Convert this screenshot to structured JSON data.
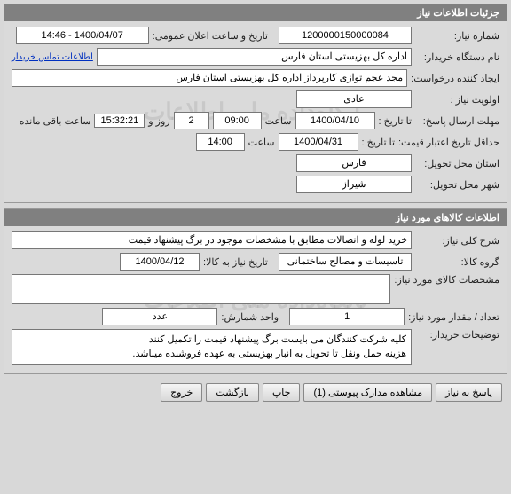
{
  "panel1": {
    "title": "جزئیات اطلاعات نیاز",
    "watermark": "پایگاه‌داده ملی اطلاعات",
    "need_no_label": "شماره نیاز:",
    "need_no": "1200000150000084",
    "public_dt_label": "تاریخ و ساعت اعلان عمومی:",
    "public_dt": "1400/04/07 - 14:46",
    "buyer_org_label": "نام دستگاه خریدار:",
    "buyer_org": "اداره کل بهزیستی استان فارس",
    "buyer_contact_link": "اطلاعات تماس خریدار",
    "creator_label": "ایجاد کننده درخواست:",
    "creator": "مجد عجم توازی کارپرداز اداره کل بهزیستی استان فارس",
    "priority_label": "اولویت نیاز :",
    "priority": "عادی",
    "deadline_label": "مهلت ارسال پاسخ:",
    "to_date_label": "تا تاریخ :",
    "deadline_date": "1400/04/10",
    "time_label": "ساعت",
    "deadline_time": "09:00",
    "days_field": "2",
    "days_and": "روز و",
    "countdown": "15:32:21",
    "remaining": "ساعت باقی مانده",
    "min_valid_label": "حداقل تاریخ اعتبار قیمت:",
    "min_valid_date": "1400/04/31",
    "min_valid_time": "14:00",
    "province_label": "استان محل تحویل:",
    "province": "فارس",
    "city_label": "شهر محل تحویل:",
    "city": "شیراز"
  },
  "panel2": {
    "title": "اطلاعات کالاهای مورد نیاز",
    "watermark": "پایگاه‌داده ملی اطلاعات",
    "summary_label": "شرح کلی نیاز:",
    "summary": "خرید لوله و اتصالات مطابق با مشخصات موجود در برگ پیشنهاد قیمت",
    "group_label": "گروه کالا:",
    "group": "تاسیسات و مصالح ساختمانی",
    "need_dt_label": "تاریخ نیاز به کالا:",
    "need_dt": "1400/04/12",
    "goods_spec_label": "مشخصات کالای مورد نیاز:",
    "goods_spec": "",
    "qty_label": "تعداد / مقدار مورد نیاز:",
    "qty": "1",
    "unit_label": "واحد شمارش:",
    "unit": "عدد",
    "buyer_notes_label": "توضیحات خریدار:",
    "buyer_notes": "کلیه شرکت کنندگان می بایست برگ پیشنهاد قیمت را تکمیل کنند\nهزینه حمل ونقل تا تحویل به انبار بهزیستی به عهده فروشنده میباشد."
  },
  "buttons": {
    "respond": "پاسخ به نیاز",
    "attachments": "مشاهده مدارک پیوستی  (1)",
    "print": "چاپ",
    "back": "بازگشت",
    "exit": "خروج"
  }
}
